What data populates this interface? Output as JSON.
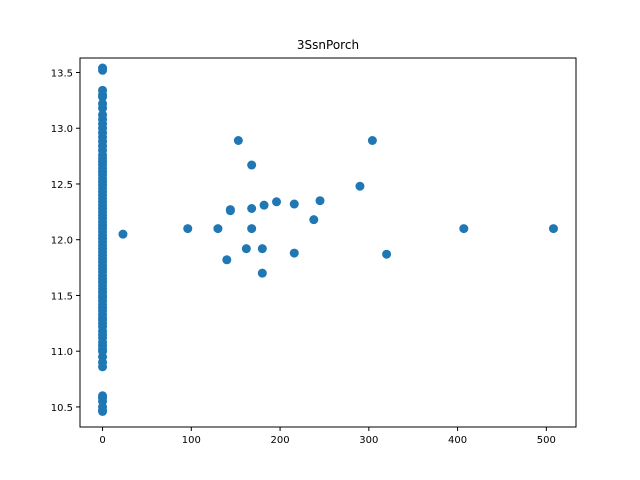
{
  "chart_data": {
    "type": "scatter",
    "title": "3SsnPorch",
    "xlabel": "",
    "ylabel": "",
    "xlim": [
      -25.4,
      533.4
    ],
    "ylim": [
      10.32,
      13.63
    ],
    "x_ticks": [
      0,
      100,
      200,
      300,
      400,
      500
    ],
    "y_ticks": [
      10.5,
      11.0,
      11.5,
      12.0,
      12.5,
      13.0,
      13.5
    ],
    "y_tick_labels": [
      "10.5",
      "11.0",
      "11.5",
      "12.0",
      "12.5",
      "13.0",
      "13.5"
    ],
    "grid": false,
    "legend": false,
    "marker_color": "#1f77b4",
    "series": [
      {
        "points": [
          [
            23,
            12.05
          ],
          [
            96,
            12.1
          ],
          [
            130,
            12.1
          ],
          [
            140,
            11.82
          ],
          [
            144,
            12.27
          ],
          [
            144,
            12.26
          ],
          [
            153,
            12.89
          ],
          [
            162,
            11.92
          ],
          [
            168,
            12.67
          ],
          [
            168,
            12.28
          ],
          [
            168,
            12.1
          ],
          [
            180,
            11.92
          ],
          [
            180,
            11.7
          ],
          [
            182,
            12.31
          ],
          [
            196,
            12.34
          ],
          [
            216,
            12.32
          ],
          [
            216,
            11.88
          ],
          [
            238,
            12.18
          ],
          [
            245,
            12.35
          ],
          [
            290,
            12.48
          ],
          [
            304,
            12.89
          ],
          [
            320,
            11.87
          ],
          [
            407,
            12.1
          ],
          [
            508,
            12.1
          ]
        ]
      },
      {
        "x": 0,
        "y": [
          10.46,
          10.47,
          10.5,
          10.55,
          10.58,
          10.6,
          10.86,
          10.9,
          10.95,
          11.0,
          11.02,
          11.05,
          11.08,
          11.12,
          11.15,
          11.18,
          11.22,
          11.25,
          11.28,
          11.3,
          11.33,
          11.36,
          11.39,
          11.42,
          11.45,
          11.48,
          11.5,
          11.53,
          11.56,
          11.59,
          11.62,
          11.65,
          11.68,
          11.71,
          11.74,
          11.77,
          11.8,
          11.83,
          11.86,
          11.89,
          11.92,
          11.95,
          11.98,
          12.01,
          12.04,
          12.07,
          12.1,
          12.13,
          12.16,
          12.19,
          12.22,
          12.25,
          12.28,
          12.31,
          12.34,
          12.37,
          12.4,
          12.43,
          12.46,
          12.49,
          12.52,
          12.55,
          12.58,
          12.61,
          12.64,
          12.67,
          12.7,
          12.73,
          12.76,
          12.8,
          12.84,
          12.88,
          12.92,
          12.96,
          13.0,
          13.04,
          13.08,
          13.12,
          13.18,
          13.22,
          13.28,
          13.3,
          13.34,
          13.52,
          13.54
        ]
      }
    ]
  }
}
